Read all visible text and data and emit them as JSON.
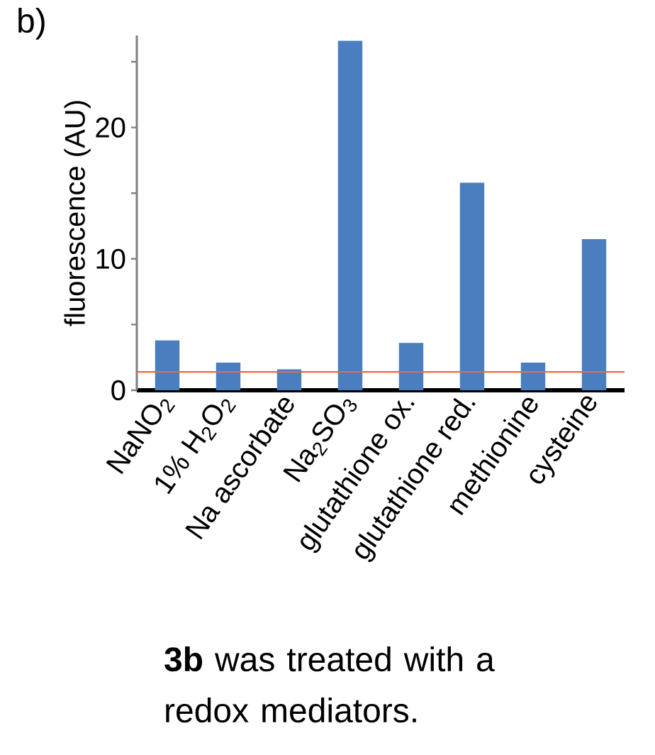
{
  "chart_data": {
    "type": "bar",
    "title": "b)",
    "ylabel": "fluorescence (AU)",
    "categories": [
      "NaNO$_{2}$",
      "1% H$_{2}$O$_{2}$",
      "Na ascorbate",
      "Na$_{2}$SO$_{3}$",
      "glutathione ox.",
      "glutathione red.",
      "methionine",
      "cysteine"
    ],
    "values": [
      3.8,
      2.1,
      1.6,
      26.6,
      3.6,
      15.8,
      2.1,
      11.5
    ],
    "color": "#4a7ebf",
    "ylim": [
      0,
      27
    ],
    "yticks": [
      0,
      10,
      20,
      {
        "value": 5,
        "label": null
      },
      {
        "value": 15,
        "label": null
      },
      {
        "value": 25,
        "label": null
      }
    ],
    "ref_lines": [
      {
        "axis": "y",
        "value": 1.4,
        "color": "#e8684a"
      }
    ],
    "annotations": [
      "**3b** was treated with a redox mediators."
    ]
  }
}
